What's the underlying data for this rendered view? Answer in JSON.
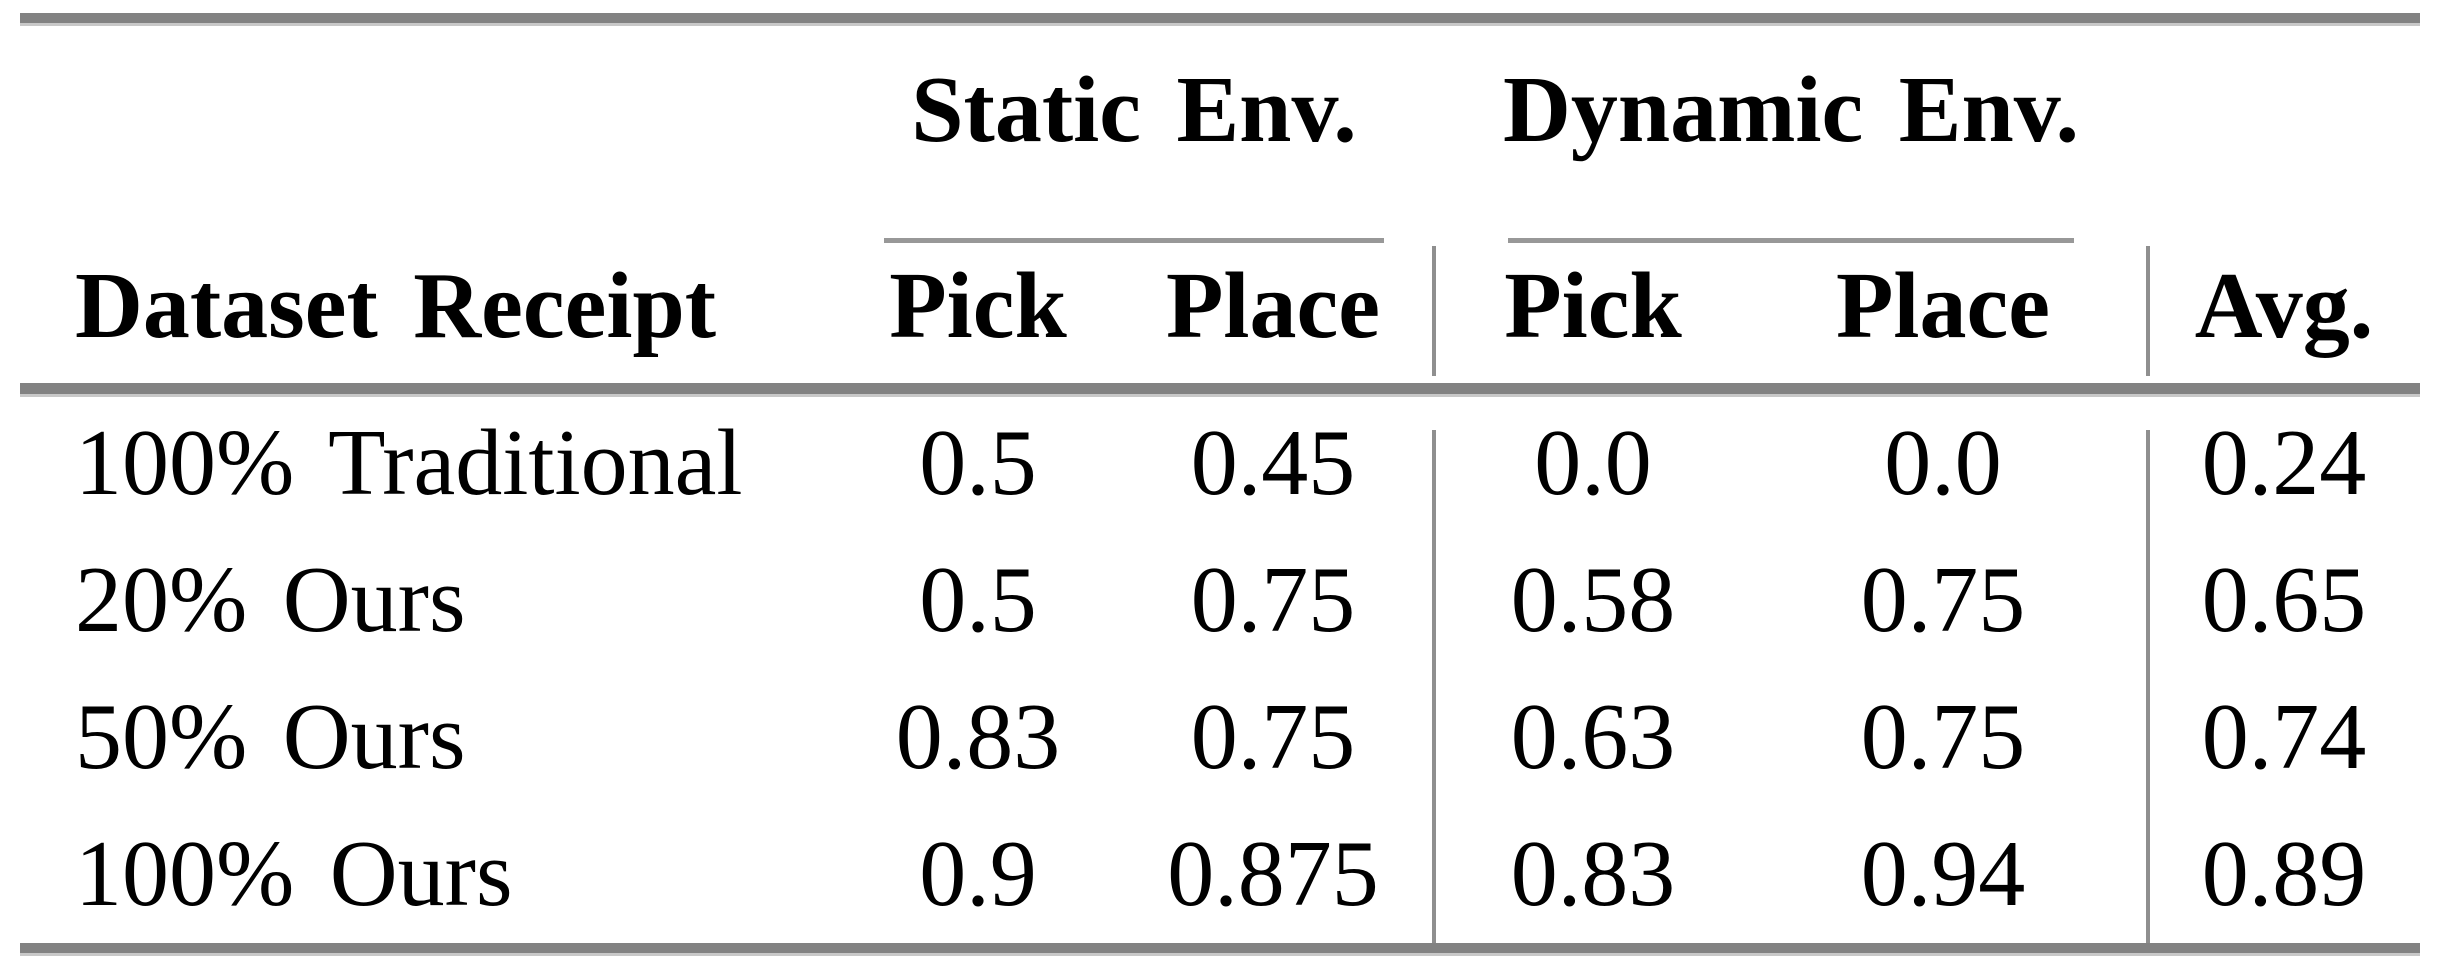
{
  "table": {
    "row_header_label": "Dataset Receipt",
    "avg_label": "Avg.",
    "groups": [
      {
        "label": "Static Env.",
        "columns": [
          "Pick",
          "Place"
        ]
      },
      {
        "label": "Dynamic Env.",
        "columns": [
          "Pick",
          "Place"
        ]
      }
    ],
    "rows": [
      {
        "label": "100% Traditional",
        "static_pick": "0.5",
        "static_place": "0.45",
        "dynamic_pick": "0.0",
        "dynamic_place": "0.0",
        "avg": "0.24"
      },
      {
        "label": "20% Ours",
        "static_pick": "0.5",
        "static_place": "0.75",
        "dynamic_pick": "0.58",
        "dynamic_place": "0.75",
        "avg": "0.65"
      },
      {
        "label": "50% Ours",
        "static_pick": "0.83",
        "static_place": "0.75",
        "dynamic_pick": "0.63",
        "dynamic_place": "0.75",
        "avg": "0.74"
      },
      {
        "label": "100% Ours",
        "static_pick": "0.9",
        "static_place": "0.875",
        "dynamic_pick": "0.83",
        "dynamic_place": "0.94",
        "avg": "0.89"
      }
    ],
    "style": {
      "rule_color": "#828282",
      "cmidrule_color": "#989898",
      "divider_color": "#8f8f8f",
      "text_color": "#000000",
      "background_color": "#ffffff"
    }
  }
}
